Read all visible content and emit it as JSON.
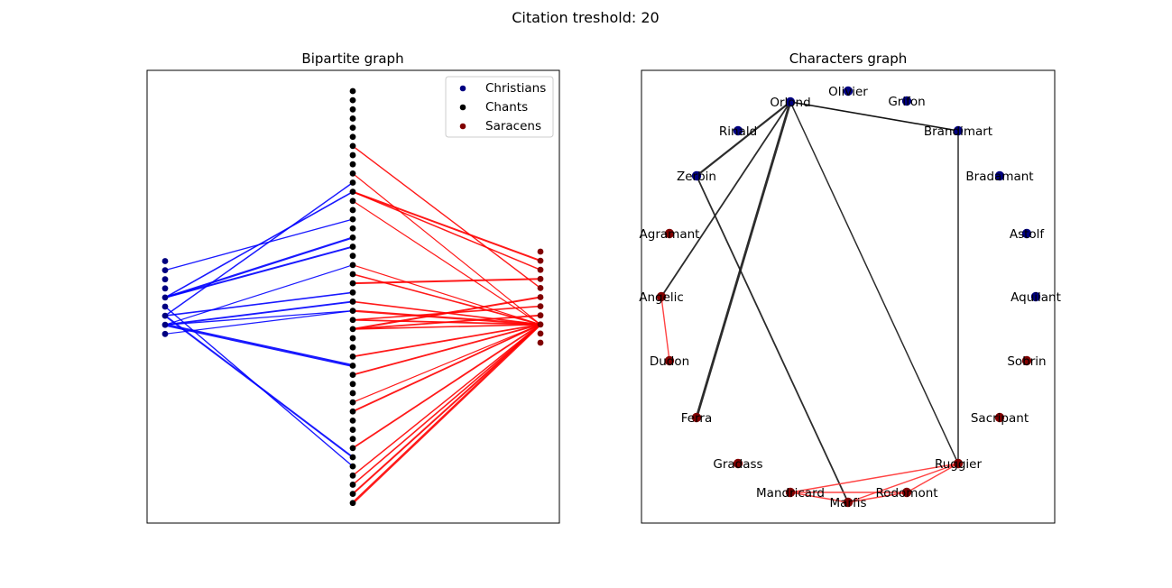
{
  "figure_title": "Citation treshold: 20",
  "bipartite": {
    "title": "Bipartite graph",
    "legend": [
      {
        "label": "Christians",
        "color": "#000080"
      },
      {
        "label": "Chants",
        "color": "#000000"
      },
      {
        "label": "Saracens",
        "color": "#800000"
      }
    ],
    "christian_count": 9,
    "chant_count": 46,
    "saracen_count": 11,
    "christian_color": "#000080",
    "chant_color": "#000000",
    "saracen_color": "#800000",
    "christian_edge_color": "#0000ff",
    "saracen_edge_color": "#ff0000",
    "christian_edges": [
      {
        "c": 1,
        "k": 14,
        "w": 1.3
      },
      {
        "c": 4,
        "k": 11,
        "w": 1.6
      },
      {
        "c": 4,
        "k": 16,
        "w": 2.2
      },
      {
        "c": 4,
        "k": 17,
        "w": 2.0
      },
      {
        "c": 5,
        "k": 41,
        "w": 1.4
      },
      {
        "c": 6,
        "k": 10,
        "w": 1.5
      },
      {
        "c": 6,
        "k": 22,
        "w": 1.6
      },
      {
        "c": 6,
        "k": 40,
        "w": 2.0
      },
      {
        "c": 7,
        "k": 19,
        "w": 1.2
      },
      {
        "c": 7,
        "k": 23,
        "w": 1.8
      },
      {
        "c": 7,
        "k": 24,
        "w": 1.3
      },
      {
        "c": 7,
        "k": 30,
        "w": 3.0
      },
      {
        "c": 8,
        "k": 24,
        "w": 1.2
      }
    ],
    "saracen_edges": [
      {
        "s": 1,
        "k": 11,
        "w": 2.0
      },
      {
        "s": 2,
        "k": 11,
        "w": 1.5
      },
      {
        "s": 3,
        "k": 21,
        "w": 2.0
      },
      {
        "s": 4,
        "k": 6,
        "w": 1.4
      },
      {
        "s": 5,
        "k": 26,
        "w": 2.0
      },
      {
        "s": 6,
        "k": 25,
        "w": 1.6
      },
      {
        "s": 7,
        "k": 26,
        "w": 1.8
      },
      {
        "s": 8,
        "k": 9,
        "w": 1.2
      },
      {
        "s": 8,
        "k": 12,
        "w": 1.2
      },
      {
        "s": 8,
        "k": 19,
        "w": 1.2
      },
      {
        "s": 8,
        "k": 20,
        "w": 1.6
      },
      {
        "s": 8,
        "k": 23,
        "w": 1.6
      },
      {
        "s": 8,
        "k": 24,
        "w": 2.2
      },
      {
        "s": 8,
        "k": 25,
        "w": 1.8
      },
      {
        "s": 8,
        "k": 26,
        "w": 1.6
      },
      {
        "s": 8,
        "k": 29,
        "w": 1.8
      },
      {
        "s": 8,
        "k": 31,
        "w": 1.8
      },
      {
        "s": 8,
        "k": 34,
        "w": 1.2
      },
      {
        "s": 8,
        "k": 35,
        "w": 1.8
      },
      {
        "s": 8,
        "k": 39,
        "w": 1.8
      },
      {
        "s": 8,
        "k": 42,
        "w": 1.5
      },
      {
        "s": 8,
        "k": 43,
        "w": 1.6
      },
      {
        "s": 8,
        "k": 44,
        "w": 2.0
      },
      {
        "s": 8,
        "k": 45,
        "w": 2.6
      }
    ]
  },
  "characters": {
    "title": "Characters graph",
    "nodes": [
      {
        "name": "Orlond",
        "group": "christian"
      },
      {
        "name": "Olivier",
        "group": "christian"
      },
      {
        "name": "Grifon",
        "group": "christian"
      },
      {
        "name": "Rinald",
        "group": "christian"
      },
      {
        "name": "Brandimart",
        "group": "christian"
      },
      {
        "name": "Zerbin",
        "group": "christian"
      },
      {
        "name": "Bradamant",
        "group": "christian"
      },
      {
        "name": "Astolf",
        "group": "christian"
      },
      {
        "name": "Aquilant",
        "group": "christian"
      },
      {
        "name": "Agramant",
        "group": "saracen"
      },
      {
        "name": "Angelic",
        "group": "saracen"
      },
      {
        "name": "Dudon",
        "group": "saracen"
      },
      {
        "name": "Ferra",
        "group": "saracen"
      },
      {
        "name": "Gradass",
        "group": "saracen"
      },
      {
        "name": "Mandricard",
        "group": "saracen"
      },
      {
        "name": "Marfis",
        "group": "saracen"
      },
      {
        "name": "Rodomont",
        "group": "saracen"
      },
      {
        "name": "Ruggier",
        "group": "saracen"
      },
      {
        "name": "Sacripant",
        "group": "saracen"
      },
      {
        "name": "Sobrin",
        "group": "saracen"
      }
    ],
    "edges": [
      {
        "a": "Orlond",
        "b": "Brandimart",
        "color": "#000000",
        "w": 1.6
      },
      {
        "a": "Orlond",
        "b": "Zerbin",
        "color": "#1a1a1a",
        "w": 2.2
      },
      {
        "a": "Orlond",
        "b": "Angelic",
        "color": "#1a1a1a",
        "w": 1.8
      },
      {
        "a": "Orlond",
        "b": "Ferra",
        "color": "#1a1a1a",
        "w": 2.8
      },
      {
        "a": "Orlond",
        "b": "Ruggier",
        "color": "#1a1a1a",
        "w": 1.5
      },
      {
        "a": "Zerbin",
        "b": "Marfis",
        "color": "#1a1a1a",
        "w": 1.8
      },
      {
        "a": "Brandimart",
        "b": "Ruggier",
        "color": "#1a1a1a",
        "w": 1.5
      },
      {
        "a": "Angelic",
        "b": "Dudon",
        "color": "#ff3333",
        "w": 1.4
      },
      {
        "a": "Ruggier",
        "b": "Mandricard",
        "color": "#ff3333",
        "w": 1.4
      },
      {
        "a": "Ruggier",
        "b": "Marfis",
        "color": "#ff3333",
        "w": 1.4
      },
      {
        "a": "Ruggier",
        "b": "Rodomont",
        "color": "#ff3333",
        "w": 1.4
      },
      {
        "a": "Mandricard",
        "b": "Marfis",
        "color": "#ff3333",
        "w": 1.4
      },
      {
        "a": "Mandricard",
        "b": "Rodomont",
        "color": "#ff3333",
        "w": 1.4
      },
      {
        "a": "Marfis",
        "b": "Rodomont",
        "color": "#ff3333",
        "w": 1.4
      }
    ]
  }
}
